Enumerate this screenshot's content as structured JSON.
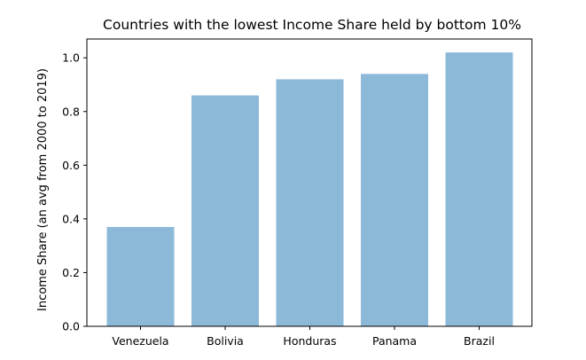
{
  "chart_data": {
    "type": "bar",
    "title": "Countries with the lowest Income Share held by bottom 10%",
    "xlabel": "",
    "ylabel": "Income Share (an avg from 2000 to 2019)",
    "categories": [
      "Venezuela",
      "Bolivia",
      "Honduras",
      "Panama",
      "Brazil"
    ],
    "values": [
      0.37,
      0.86,
      0.92,
      0.94,
      1.02
    ],
    "ylim": [
      0,
      1.07
    ],
    "yticks": [
      "0.0",
      "0.2",
      "0.4",
      "0.6",
      "0.8",
      "1.0"
    ],
    "grid": false,
    "bar_color": "#8db9d9"
  }
}
